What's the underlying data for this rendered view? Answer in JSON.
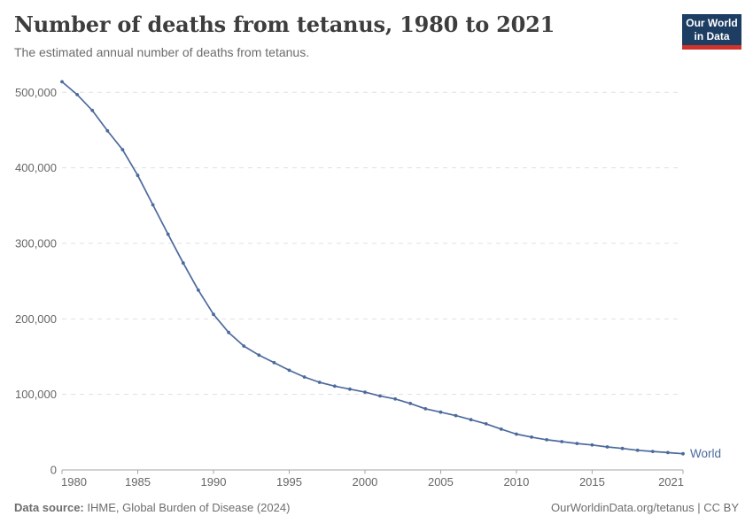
{
  "header": {
    "title": "Number of deaths from tetanus, 1980 to 2021",
    "subtitle": "The estimated annual number of deaths from tetanus."
  },
  "logo": {
    "line1": "Our World",
    "line2": "in Data",
    "bg_color": "#1d3d63",
    "accent_color": "#cf332b"
  },
  "chart_data": {
    "type": "line",
    "title": "Number of deaths from tetanus, 1980 to 2021",
    "xlabel": "",
    "ylabel": "",
    "xlim": [
      1980,
      2021
    ],
    "ylim": [
      0,
      500000
    ],
    "grid": "horizontal-dashed",
    "legend_position": "end-of-line",
    "x": [
      1980,
      1981,
      1982,
      1983,
      1984,
      1985,
      1986,
      1987,
      1988,
      1989,
      1990,
      1991,
      1992,
      1993,
      1994,
      1995,
      1996,
      1997,
      1998,
      1999,
      2000,
      2001,
      2002,
      2003,
      2004,
      2005,
      2006,
      2007,
      2008,
      2009,
      2010,
      2011,
      2012,
      2013,
      2014,
      2015,
      2016,
      2017,
      2018,
      2019,
      2020,
      2021
    ],
    "series": [
      {
        "name": "World",
        "color": "#4c6a9c",
        "values": [
          514000,
          497000,
          476000,
          449000,
          424000,
          390000,
          351000,
          312000,
          274000,
          238000,
          206000,
          182000,
          164000,
          152000,
          142000,
          132000,
          123000,
          116000,
          111000,
          107000,
          103000,
          98000,
          94000,
          88000,
          81000,
          76500,
          72000,
          66500,
          61000,
          54000,
          47500,
          43500,
          40000,
          37500,
          35000,
          33000,
          30500,
          28500,
          26000,
          24500,
          23000,
          21500
        ]
      }
    ],
    "x_ticks": [
      1980,
      1985,
      1990,
      1995,
      2000,
      2005,
      2010,
      2015,
      2021
    ],
    "x_tick_labels": [
      "1980",
      "1985",
      "1990",
      "1995",
      "2000",
      "2005",
      "2010",
      "2015",
      "2021"
    ],
    "y_ticks": [
      0,
      100000,
      200000,
      300000,
      400000,
      500000
    ],
    "y_tick_labels": [
      "0",
      "100,000",
      "200,000",
      "300,000",
      "400,000",
      "500,000"
    ]
  },
  "footer": {
    "source_label": "Data source:",
    "source_text": "IHME, Global Burden of Disease (2024)",
    "credit": "OurWorldinData.org/tetanus | CC BY"
  },
  "colors": {
    "line": "#4c6a9c",
    "grid": "#e0e0e0",
    "axis": "#a5a5a5",
    "tick_label": "#666666"
  }
}
